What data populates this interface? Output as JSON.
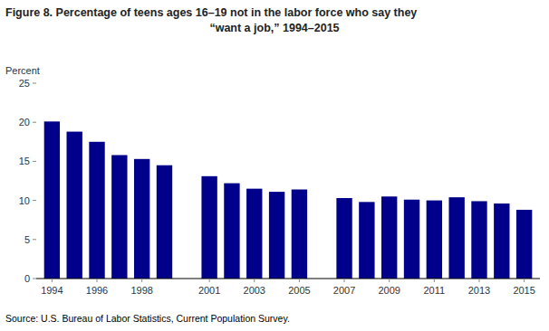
{
  "chart_data": {
    "type": "bar",
    "title": [
      "Figure 8. Percentage of teens ages 16–19 not in the labor force who say they",
      "“want a job,” 1994–2015"
    ],
    "ylabel": "Percent",
    "source": "Source: U.S. Bureau of Labor Statistics, Current Population Survey.",
    "x": [
      1994,
      1995,
      1996,
      1997,
      1998,
      1999,
      2001,
      2002,
      2003,
      2004,
      2005,
      2007,
      2008,
      2009,
      2010,
      2011,
      2012,
      2013,
      2014,
      2015
    ],
    "values": [
      20.1,
      18.8,
      17.5,
      15.8,
      15.3,
      14.5,
      13.1,
      12.2,
      11.5,
      11.1,
      11.4,
      10.3,
      9.8,
      10.5,
      10.1,
      10.0,
      10.4,
      9.9,
      9.6,
      8.8
    ],
    "color": "#00008B",
    "xlim": [
      1993.3,
      2015.7
    ],
    "xticks": [
      1994,
      1996,
      1998,
      2001,
      2003,
      2005,
      2007,
      2009,
      2011,
      2013,
      2015
    ],
    "ylim": [
      0,
      25
    ],
    "yticks": [
      0,
      5,
      10,
      15,
      20,
      25
    ],
    "grid": false
  }
}
